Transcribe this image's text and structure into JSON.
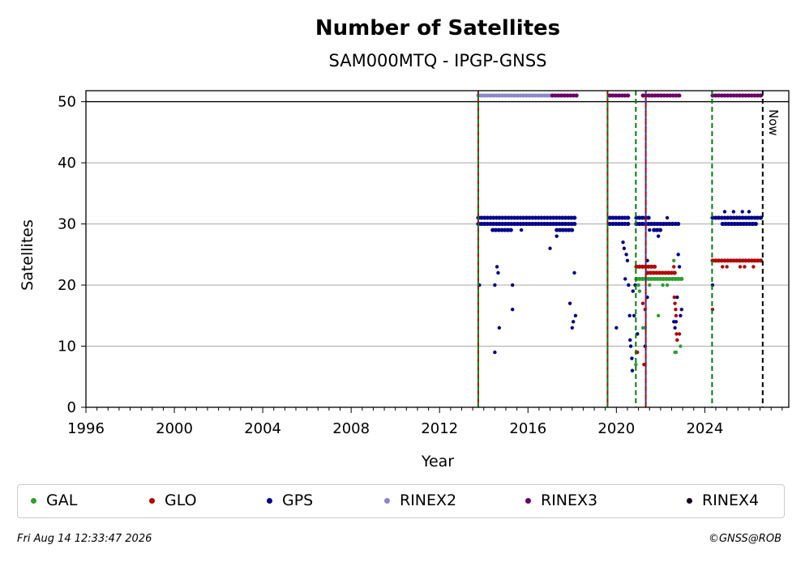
{
  "chart_data": {
    "type": "scatter",
    "title": "Number of Satellites",
    "subtitle": "SAM000MTQ - IPGP-GNSS",
    "xlabel": "Year",
    "ylabel": "Satellites",
    "xlim": [
      1996,
      2027.8
    ],
    "ylim": [
      0,
      51.8
    ],
    "xticks": [
      "1996",
      "2000",
      "2004",
      "2008",
      "2012",
      "2016",
      "2020",
      "2024"
    ],
    "yticks": [
      "0",
      "10",
      "20",
      "30",
      "40",
      "50"
    ],
    "grid": "horizontal",
    "now_label": "Now",
    "now_x": 2026.62,
    "legend_position": "bottom",
    "vertical_markers": [
      {
        "x": 2013.75,
        "colors": [
          "#b30000",
          "#008000"
        ]
      },
      {
        "x": 2019.6,
        "colors": [
          "#b30000",
          "#008000"
        ]
      },
      {
        "x": 2020.88,
        "colors": [
          "#008000"
        ]
      },
      {
        "x": 2021.33,
        "colors": [
          "#1f3fbf",
          "#b30000"
        ]
      },
      {
        "x": 2024.33,
        "colors": [
          "#008000"
        ]
      }
    ],
    "series": [
      {
        "name": "GAL",
        "color": "#2ca02c",
        "segments": [
          [
            2020.9,
            2023.0,
            21
          ]
        ],
        "points": [
          [
            2020.88,
            7
          ],
          [
            2020.9,
            9
          ],
          [
            2020.95,
            12
          ],
          [
            2021.0,
            20
          ],
          [
            2021.05,
            19
          ],
          [
            2021.2,
            13
          ],
          [
            2021.3,
            13
          ],
          [
            2021.5,
            20
          ],
          [
            2021.9,
            15
          ],
          [
            2022.1,
            20
          ],
          [
            2022.3,
            20
          ],
          [
            2022.6,
            24
          ],
          [
            2022.65,
            9
          ],
          [
            2022.7,
            9
          ],
          [
            2022.9,
            10
          ]
        ]
      },
      {
        "name": "GLO",
        "color": "#b30000",
        "segments": [
          [
            2020.9,
            2021.8,
            23
          ],
          [
            2021.4,
            2022.7,
            22
          ],
          [
            2024.35,
            2026.62,
            24
          ]
        ],
        "points": [
          [
            2020.95,
            9
          ],
          [
            2021.2,
            17
          ],
          [
            2021.25,
            7
          ],
          [
            2021.3,
            16
          ],
          [
            2022.55,
            22
          ],
          [
            2022.6,
            23
          ],
          [
            2022.62,
            18
          ],
          [
            2022.65,
            17
          ],
          [
            2022.68,
            16
          ],
          [
            2022.7,
            15
          ],
          [
            2022.72,
            12
          ],
          [
            2022.75,
            11
          ],
          [
            2022.85,
            12
          ],
          [
            2024.35,
            16
          ],
          [
            2024.8,
            23
          ],
          [
            2025.0,
            23
          ],
          [
            2025.6,
            23
          ],
          [
            2025.8,
            23
          ],
          [
            2026.2,
            23
          ]
        ]
      },
      {
        "name": "GPS",
        "color": "#00008b",
        "segments": [
          [
            2013.75,
            2018.2,
            31
          ],
          [
            2013.75,
            2018.2,
            30
          ],
          [
            2014.4,
            2015.3,
            29
          ],
          [
            2017.3,
            2018.0,
            29
          ],
          [
            2019.7,
            2020.6,
            30
          ],
          [
            2019.7,
            2020.6,
            31
          ],
          [
            2020.9,
            2022.8,
            30
          ],
          [
            2020.9,
            2021.5,
            31
          ],
          [
            2021.7,
            2022.1,
            29
          ],
          [
            2024.35,
            2026.62,
            31
          ],
          [
            2024.8,
            2026.4,
            30
          ]
        ],
        "points": [
          [
            2013.8,
            20
          ],
          [
            2014.5,
            9
          ],
          [
            2014.6,
            23
          ],
          [
            2014.65,
            22
          ],
          [
            2014.7,
            13
          ],
          [
            2014.5,
            20
          ],
          [
            2015.3,
            20
          ],
          [
            2015.3,
            16
          ],
          [
            2015.7,
            29
          ],
          [
            2017.0,
            26
          ],
          [
            2017.3,
            28
          ],
          [
            2017.9,
            17
          ],
          [
            2018.0,
            13
          ],
          [
            2018.05,
            14
          ],
          [
            2018.1,
            22
          ],
          [
            2018.15,
            15
          ],
          [
            2020.0,
            13
          ],
          [
            2020.3,
            27
          ],
          [
            2020.35,
            26
          ],
          [
            2020.4,
            21
          ],
          [
            2020.45,
            25
          ],
          [
            2020.5,
            24
          ],
          [
            2020.55,
            20
          ],
          [
            2020.6,
            15
          ],
          [
            2020.62,
            11
          ],
          [
            2020.65,
            10
          ],
          [
            2020.7,
            8
          ],
          [
            2020.72,
            6
          ],
          [
            2020.75,
            19
          ],
          [
            2020.8,
            15
          ],
          [
            2020.85,
            20
          ],
          [
            2020.95,
            12
          ],
          [
            2021.3,
            10
          ],
          [
            2021.4,
            24
          ],
          [
            2021.4,
            18
          ],
          [
            2021.5,
            29
          ],
          [
            2021.9,
            28
          ],
          [
            2022.3,
            31
          ],
          [
            2022.6,
            14
          ],
          [
            2022.65,
            13
          ],
          [
            2022.7,
            14
          ],
          [
            2022.75,
            18
          ],
          [
            2022.8,
            25
          ],
          [
            2022.85,
            23
          ],
          [
            2022.9,
            15
          ],
          [
            2022.95,
            16
          ],
          [
            2024.35,
            20
          ],
          [
            2024.9,
            32
          ],
          [
            2025.3,
            32
          ],
          [
            2025.7,
            32
          ],
          [
            2026.0,
            32
          ]
        ]
      },
      {
        "name": "RINEX2",
        "color": "#8888cc",
        "segments": [
          [
            2013.75,
            2017.1,
            51
          ]
        ],
        "points": []
      },
      {
        "name": "RINEX3",
        "color": "#6a006a",
        "segments": [
          [
            2017.1,
            2018.2,
            51
          ],
          [
            2019.7,
            2020.6,
            51
          ],
          [
            2021.2,
            2022.9,
            51
          ],
          [
            2024.35,
            2026.62,
            51
          ]
        ],
        "points": []
      },
      {
        "name": "RINEX4",
        "color": "#1a0022",
        "segments": [],
        "points": []
      }
    ]
  },
  "footer": {
    "timestamp": "Fri Aug 14 12:33:47 2026",
    "credit": "©GNSS@ROB"
  }
}
